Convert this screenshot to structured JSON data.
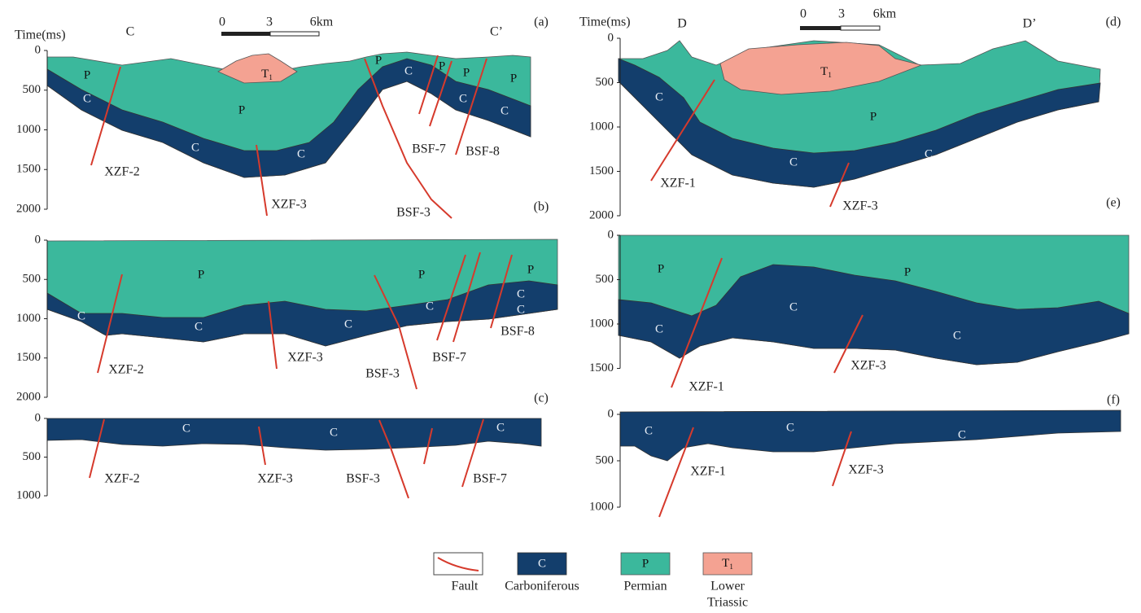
{
  "panels": [
    {
      "label": "(a)",
      "axis_title": "Time(ms)",
      "ticks": [
        0,
        500,
        1000,
        1500,
        2000
      ],
      "section": [
        "C",
        "C’"
      ],
      "units": [
        "P",
        "P",
        "P",
        "P",
        "P",
        "P",
        "C",
        "C",
        "C",
        "C",
        "C",
        "C",
        {
          "base": "T",
          "sub": "1"
        }
      ],
      "faults": [
        "XZF-2",
        "XZF-3",
        "BSF-3",
        "BSF-7",
        "BSF-8"
      ]
    },
    {
      "label": "(b)",
      "ticks": [
        0,
        500,
        1000,
        1500,
        2000
      ],
      "units": [
        "P",
        "P",
        "P",
        "C",
        "C",
        "C",
        "C",
        "C",
        "C"
      ],
      "faults": [
        "XZF-2",
        "XZF-3",
        "BSF-3",
        "BSF-7",
        "BSF-8"
      ]
    },
    {
      "label": "(c)",
      "ticks": [
        0,
        500,
        1000
      ],
      "units": [
        "C",
        "C",
        "C"
      ],
      "faults": [
        "XZF-2",
        "XZF-3",
        "BSF-3",
        "BSF-7"
      ]
    },
    {
      "label": "(d)",
      "axis_title": "Time(ms)",
      "ticks": [
        0,
        500,
        1000,
        1500,
        2000
      ],
      "section": [
        "D",
        "D’"
      ],
      "units": [
        "P",
        "C",
        "C",
        "C",
        {
          "base": "T",
          "sub": "1"
        }
      ],
      "faults": [
        "XZF-1",
        "XZF-3"
      ]
    },
    {
      "label": "(e)",
      "ticks": [
        0,
        500,
        1000,
        1500
      ],
      "units": [
        "P",
        "P",
        "C",
        "C",
        "C"
      ],
      "faults": [
        "XZF-1",
        "XZF-3"
      ]
    },
    {
      "label": "(f)",
      "ticks": [
        0,
        500,
        1000
      ],
      "units": [
        "C",
        "C",
        "C"
      ],
      "faults": [
        "XZF-1",
        "XZF-3"
      ]
    }
  ],
  "scale_bars": [
    {
      "labels": [
        "0",
        "3",
        "6km"
      ]
    },
    {
      "labels": [
        "0",
        "3",
        "6km"
      ]
    }
  ],
  "legend": {
    "items": [
      {
        "label": [
          "Fault"
        ]
      },
      {
        "symbol": "C",
        "label": [
          "Carboniferous"
        ]
      },
      {
        "symbol": "P",
        "label": [
          "Permian"
        ]
      },
      {
        "symbol": {
          "base": "T",
          "sub": "1"
        },
        "label": [
          "Lower",
          "Triassic"
        ]
      }
    ]
  }
}
